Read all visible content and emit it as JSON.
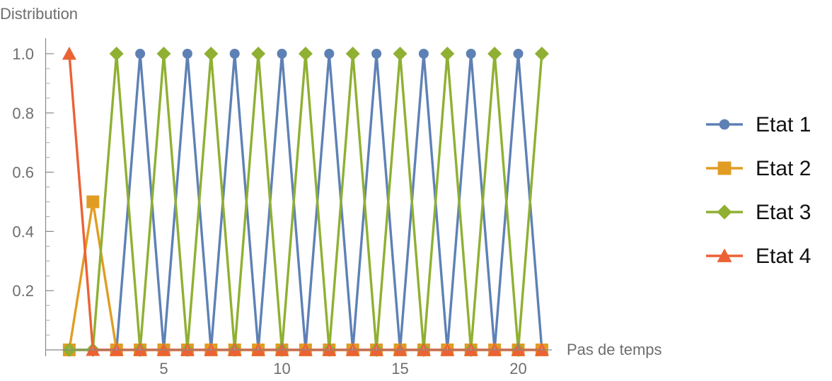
{
  "chart_data": {
    "type": "line",
    "title": "",
    "ylabel": "Distribution",
    "xlabel": "Pas de temps",
    "x": [
      1,
      2,
      3,
      4,
      5,
      6,
      7,
      8,
      9,
      10,
      11,
      12,
      13,
      14,
      15,
      16,
      17,
      18,
      19,
      20,
      21
    ],
    "xlim": [
      0.1,
      21.5
    ],
    "ylim": [
      0,
      1.05
    ],
    "x_ticks": [
      5,
      10,
      15,
      20
    ],
    "y_ticks": [
      0.2,
      0.4,
      0.6,
      0.8,
      1.0
    ],
    "x_tick_labels": [
      "5",
      "10",
      "15",
      "20"
    ],
    "y_tick_labels": [
      "0.2",
      "0.4",
      "0.6",
      "0.8",
      "1.0"
    ],
    "grid": false,
    "legend_position": "right",
    "series": [
      {
        "name": "Etat 1",
        "color": "#5e81b5",
        "marker": "circle",
        "values": [
          0,
          0,
          0,
          1,
          0,
          1,
          0,
          1,
          0,
          1,
          0,
          1,
          0,
          1,
          0,
          1,
          0,
          1,
          0,
          1,
          0
        ]
      },
      {
        "name": "Etat 2",
        "color": "#e19c24",
        "marker": "square",
        "values": [
          0,
          0.5,
          0,
          0,
          0,
          0,
          0,
          0,
          0,
          0,
          0,
          0,
          0,
          0,
          0,
          0,
          0,
          0,
          0,
          0,
          0
        ]
      },
      {
        "name": "Etat 3",
        "color": "#8fb032",
        "marker": "diamond",
        "values": [
          0,
          0,
          1,
          0,
          1,
          0,
          1,
          0,
          1,
          0,
          1,
          0,
          1,
          0,
          1,
          0,
          1,
          0,
          1,
          0,
          1
        ]
      },
      {
        "name": "Etat 4",
        "color": "#eb6235",
        "marker": "triangle",
        "values": [
          1,
          0,
          0,
          0,
          0,
          0,
          0,
          0,
          0,
          0,
          0,
          0,
          0,
          0,
          0,
          0,
          0,
          0,
          0,
          0,
          0
        ]
      }
    ]
  }
}
